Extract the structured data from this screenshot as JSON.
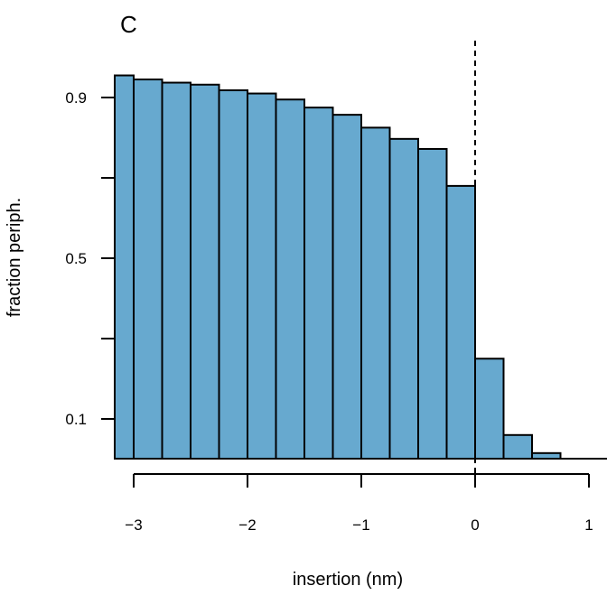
{
  "panel_label": "C",
  "chart_data": {
    "type": "bar",
    "xlabel": "insertion (nm)",
    "ylabel": "fraction periph.",
    "x_ticks": [
      -3,
      -2,
      -1,
      0,
      1
    ],
    "x_tick_labels": [
      "−3",
      "−2",
      "−1",
      "0",
      "1"
    ],
    "y_ticks": [
      0.1,
      0.3,
      0.5,
      0.7,
      0.9
    ],
    "y_tick_labels": [
      "0.1",
      "",
      "0.5",
      "",
      "0.9"
    ],
    "xlim": [
      -3.15,
      1.15
    ],
    "ylim": [
      0.0,
      0.97
    ],
    "bar_width": 0.25,
    "bars": [
      {
        "x0": -3.25,
        "value": 0.955
      },
      {
        "x0": -3.0,
        "value": 0.945
      },
      {
        "x0": -2.75,
        "value": 0.937
      },
      {
        "x0": -2.5,
        "value": 0.932
      },
      {
        "x0": -2.25,
        "value": 0.918
      },
      {
        "x0": -2.0,
        "value": 0.91
      },
      {
        "x0": -1.75,
        "value": 0.895
      },
      {
        "x0": -1.5,
        "value": 0.875
      },
      {
        "x0": -1.25,
        "value": 0.857
      },
      {
        "x0": -1.0,
        "value": 0.825
      },
      {
        "x0": -0.75,
        "value": 0.797
      },
      {
        "x0": -0.5,
        "value": 0.772
      },
      {
        "x0": -0.25,
        "value": 0.68
      },
      {
        "x0": 0.0,
        "value": 0.25
      },
      {
        "x0": 0.25,
        "value": 0.06
      },
      {
        "x0": 0.5,
        "value": 0.015
      }
    ],
    "reference_line_x": 0,
    "bar_color": "#67a9cf",
    "bar_edge_color": "#000000"
  }
}
